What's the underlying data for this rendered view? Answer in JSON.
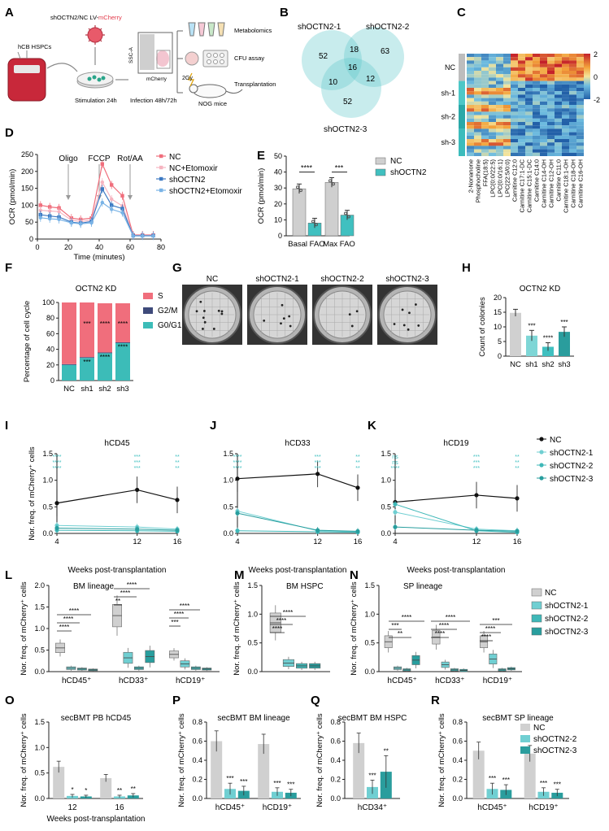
{
  "colors": {
    "nc_black": "#111111",
    "gray_bar": "#d0d0d0",
    "teal": "#40c0c0",
    "teal_light": "#7ed6d6",
    "teal_dark": "#2a9d9d",
    "sh1": "#70cfd2",
    "sh2": "#3fb8b8",
    "sh3": "#289e9e",
    "pink": "#f06e7c",
    "cycle_g2m": "#3e4a7a",
    "cycle_g0g1": "#3cbcb8",
    "mcherry": "#e23a4a"
  },
  "panelA": {
    "letter": "A",
    "vector": "shOCTN2/NC LV-",
    "vector_red": "mCherry",
    "cells": "hCB HSPCs",
    "stimulation": "Stimulation 24h",
    "infection": "Infection 48h/72h",
    "ssc": "SSC-A",
    "mcherry_axis": "mCherry",
    "metabolomics": "Metabolomics",
    "cfu": "CFU assay",
    "transplant": "Transplantation",
    "gy": "2Gy",
    "mice": "NOG mice"
  },
  "panelB": {
    "letter": "B",
    "set1": "shOCTN2-1",
    "set2": "shOCTN2-2",
    "set3": "shOCTN2-3",
    "only1": "52",
    "only2": "63",
    "only3": "52",
    "ab": "18",
    "ac": "10",
    "bc": "12",
    "abc": "16"
  },
  "panelC": {
    "letter": "C",
    "rows": [
      "NC",
      "sh-1",
      "sh-2",
      "sh-3"
    ],
    "metabolites": [
      "2-Nonanone",
      "Phosphocholine",
      "FFA(18:5)",
      "LPC(0:0/22:5)",
      "LPC(0:0/16:1)",
      "LPC(22:5/0:0)",
      "Carnitine C12:0",
      "Carnitine C17:1-DC",
      "Carnitine C15:1-DC",
      "Carnitine C14:0",
      "Carnitine C14-OH",
      "Carnitine C12-OH",
      "Carnitine C11:0",
      "Carnitine C18:1-OH",
      "Carnitine C18-OH",
      "Carnitine C16-OH"
    ],
    "scale_ticks": [
      "2",
      "0",
      "-2"
    ]
  },
  "panelD": {
    "letter": "D",
    "chart_data": {
      "type": "line",
      "xlabel": "Time (minutes)",
      "ylabel": "OCR (pmol/min)",
      "xlim": [
        0,
        80
      ],
      "ylim": [
        0,
        250
      ],
      "x_ticks": [
        0,
        20,
        40,
        60,
        80
      ],
      "y_ticks": [
        0,
        50,
        100,
        150,
        200,
        250
      ],
      "annotations": [
        "Oligo",
        "FCCP",
        "Rot/AA"
      ],
      "x": [
        2,
        8,
        14,
        22,
        28,
        35,
        42,
        48,
        55,
        62,
        68,
        75
      ],
      "series": [
        {
          "name": "NC",
          "values": [
            100,
            95,
            92,
            62,
            58,
            62,
            222,
            160,
            128,
            12,
            12,
            12
          ]
        },
        {
          "name": "NC+Etomoxir",
          "values": [
            85,
            83,
            81,
            56,
            52,
            56,
            168,
            118,
            98,
            10,
            10,
            10
          ]
        },
        {
          "name": "shOCTN2",
          "values": [
            72,
            68,
            65,
            50,
            47,
            52,
            148,
            100,
            90,
            10,
            10,
            10
          ]
        },
        {
          "name": "shOCTN2+Etomoxir",
          "values": [
            63,
            60,
            58,
            48,
            45,
            48,
            108,
            88,
            78,
            9,
            9,
            9
          ]
        }
      ]
    }
  },
  "panelE": {
    "letter": "E",
    "chart_data": {
      "type": "bar",
      "categories": [
        "Basal FAO",
        "Max FAO"
      ],
      "ylabel": "OCR (pmol/min)",
      "ylim": [
        0,
        50
      ],
      "y_ticks": [
        0,
        10,
        20,
        30,
        40,
        50
      ],
      "series": [
        {
          "name": "NC",
          "values": [
            29.5,
            33.5
          ]
        },
        {
          "name": "shOCTN2",
          "values": [
            8.0,
            13.0
          ]
        }
      ],
      "significance": [
        "****",
        "***"
      ]
    }
  },
  "panelF": {
    "letter": "F",
    "chart_data": {
      "type": "bar",
      "stacked": true,
      "title": "OCTN2 KD",
      "categories": [
        "NC",
        "sh1",
        "sh2",
        "sh3"
      ],
      "ylabel": "Percentage of cell cycle",
      "ylim": [
        0,
        100
      ],
      "y_ticks": [
        0,
        20,
        40,
        60,
        80,
        100
      ],
      "series": [
        {
          "name": "G0/G1",
          "values": [
            20,
            29,
            35,
            48
          ]
        },
        {
          "name": "G2/M",
          "values": [
            1,
            1,
            1,
            1
          ]
        },
        {
          "name": "S",
          "values": [
            79,
            70,
            63,
            50
          ]
        }
      ],
      "legend_order": [
        "S",
        "G2/M",
        "G0/G1"
      ],
      "sig_s": [
        "",
        "***",
        "****",
        "****"
      ],
      "sig_g": [
        "",
        "***",
        "****",
        "****"
      ]
    }
  },
  "panelG": {
    "letter": "G",
    "wells": [
      "NC",
      "shOCTN2-1",
      "shOCTN2-2",
      "shOCTN2-3"
    ]
  },
  "panelH": {
    "letter": "H",
    "chart_data": {
      "type": "bar",
      "title": "OCTN2 KD",
      "categories": [
        "NC",
        "sh1",
        "sh2",
        "sh3"
      ],
      "values": [
        14.8,
        7.0,
        3.2,
        8.3
      ],
      "errors": [
        1.2,
        1.8,
        1.4,
        1.7
      ],
      "ylabel": "Count of colonies",
      "ylim": [
        0,
        20
      ],
      "y_ticks": [
        0,
        5,
        10,
        15,
        20
      ],
      "significance": [
        "",
        "***",
        "****",
        "***"
      ]
    }
  },
  "panelI": {
    "letter": "I",
    "chart_data": {
      "type": "line",
      "title": "hCD45",
      "ylabel": "Nor. freq. of mCherry⁺ cells",
      "x": [
        4,
        12,
        16
      ],
      "ylim": [
        0,
        1.5
      ],
      "y_ticks": [
        "0.0",
        "0.5",
        "1.0",
        "1.5"
      ],
      "series": [
        {
          "name": "NC",
          "values": [
            0.57,
            0.82,
            0.63
          ]
        },
        {
          "name": "shOCTN2-1",
          "values": [
            0.15,
            0.12,
            0.08
          ]
        },
        {
          "name": "shOCTN2-2",
          "values": [
            0.06,
            0.05,
            0.04
          ]
        },
        {
          "name": "shOCTN2-3",
          "values": [
            0.1,
            0.08,
            0.06
          ]
        }
      ],
      "sig": [
        "****\n****\n****",
        "***\n***\n***",
        "**\n**\n**"
      ]
    }
  },
  "panelJ": {
    "letter": "J",
    "chart_data": {
      "type": "line",
      "title": "hCD33",
      "x": [
        4,
        12,
        16
      ],
      "ylim": [
        0,
        1.5
      ],
      "y_ticks": [
        "0.0",
        "0.5",
        "1.0",
        "1.5"
      ],
      "series": [
        {
          "name": "NC",
          "values": [
            1.03,
            1.12,
            0.86
          ]
        },
        {
          "name": "shOCTN2-1",
          "values": [
            0.42,
            0.05,
            0.03
          ]
        },
        {
          "name": "shOCTN2-2",
          "values": [
            0.05,
            0.03,
            0.02
          ]
        },
        {
          "name": "shOCTN2-3",
          "values": [
            0.38,
            0.06,
            0.04
          ]
        }
      ],
      "sig": [
        "****\n****\n****",
        "***\n***\n***",
        "**\n**\n**"
      ]
    }
  },
  "panelK": {
    "letter": "K",
    "chart_data": {
      "type": "line",
      "title": "hCD19",
      "x": [
        4,
        12,
        16
      ],
      "ylim": [
        0,
        1.5
      ],
      "y_ticks": [
        "0.0",
        "0.5",
        "1.0",
        "1.5"
      ],
      "series": [
        {
          "name": "NC",
          "values": [
            0.59,
            0.72,
            0.66
          ]
        },
        {
          "name": "shOCTN2-1",
          "values": [
            0.4,
            0.08,
            0.05
          ]
        },
        {
          "name": "shOCTN2-2",
          "values": [
            0.55,
            0.05,
            0.02
          ]
        },
        {
          "name": "shOCTN2-3",
          "values": [
            0.12,
            0.06,
            0.04
          ]
        }
      ],
      "sig": [
        "ns\nns\n****",
        "***\n***\n***",
        "**\n**\n**"
      ]
    },
    "legend": [
      "NC",
      "shOCTN2-1",
      "shOCTN2-2",
      "shOCTN2-3"
    ]
  },
  "weeks_label": "Weeks post-transplantation",
  "panelL": {
    "letter": "L",
    "chart_data": {
      "type": "box",
      "title": "BM lineage",
      "ylabel": "Nor. freq. of mCherry⁺ cells",
      "categories": [
        "hCD45⁺",
        "hCD33⁺",
        "hCD19⁺"
      ],
      "ylim": [
        0,
        2.0
      ],
      "y_ticks": [
        "0.0",
        "0.5",
        "1.0",
        "1.5",
        "2.0"
      ],
      "medians": [
        [
          0.55,
          0.08,
          0.06,
          0.04
        ],
        [
          1.3,
          0.32,
          0.08,
          0.35
        ],
        [
          0.4,
          0.18,
          0.08,
          0.06
        ]
      ],
      "sig": [
        "****",
        "****",
        "****",
        "**",
        "****",
        "****",
        "***",
        "****",
        "****"
      ]
    }
  },
  "panelM": {
    "letter": "M",
    "chart_data": {
      "type": "box",
      "title": "BM HSPC",
      "ylabel": "Nor. freq. of mCherry⁺ cells",
      "ylim": [
        0,
        1.5
      ],
      "y_ticks": [
        "0.0",
        "0.5",
        "1.0",
        "1.5"
      ],
      "medians": [
        0.85,
        0.15,
        0.1,
        0.1
      ],
      "sig": [
        "****",
        "****",
        "****"
      ]
    }
  },
  "panelN": {
    "letter": "N",
    "chart_data": {
      "type": "box",
      "title": "SP lineage",
      "ylabel": "Nor. freq. of mCherry⁺ cells",
      "categories": [
        "hCD45⁺",
        "hCD33⁺",
        "hCD19⁺"
      ],
      "ylim": [
        0,
        1.5
      ],
      "y_ticks": [
        "0.0",
        "0.5",
        "1.0",
        "1.5"
      ],
      "medians": [
        [
          0.52,
          0.06,
          0.03,
          0.2
        ],
        [
          0.6,
          0.12,
          0.03,
          0.02
        ],
        [
          0.52,
          0.22,
          0.03,
          0.05
        ]
      ],
      "sig": [
        "**",
        "***",
        "****",
        "****",
        "****",
        "****",
        "****",
        "****",
        "***"
      ]
    },
    "legend": [
      "NC",
      "shOCTN2-1",
      "shOCTN2-2",
      "shOCTN2-3"
    ]
  },
  "panelO": {
    "letter": "O",
    "chart_data": {
      "type": "bar",
      "title": "secBMT PB hCD45",
      "ylabel": "Nor. freq. of mCherry⁺ cells",
      "categories": [
        "12",
        "16"
      ],
      "xlabel": "Weeks post-transplantation",
      "ylim": [
        0,
        1.5
      ],
      "y_ticks": [
        "0.0",
        "0.5",
        "1.0",
        "1.5"
      ],
      "series": [
        {
          "name": "NC",
          "values": [
            0.62,
            0.4
          ]
        },
        {
          "name": "shOCTN2-2",
          "values": [
            0.05,
            0.04
          ]
        },
        {
          "name": "shOCTN2-3",
          "values": [
            0.04,
            0.06
          ]
        }
      ],
      "sig": [
        "*",
        "*",
        "**",
        "**"
      ]
    }
  },
  "panelP": {
    "letter": "P",
    "chart_data": {
      "type": "bar",
      "title": "secBMT BM lineage",
      "ylabel": "Nor. freq. of mCherry⁺ cells",
      "categories": [
        "hCD45⁺",
        "hCD19⁺"
      ],
      "ylim": [
        0,
        0.8
      ],
      "y_ticks": [
        "0.0",
        "0.2",
        "0.4",
        "0.6",
        "0.8"
      ],
      "series": [
        {
          "name": "NC",
          "values": [
            0.6,
            0.57
          ]
        },
        {
          "name": "shOCTN2-2",
          "values": [
            0.1,
            0.07
          ]
        },
        {
          "name": "shOCTN2-3",
          "values": [
            0.08,
            0.06
          ]
        }
      ],
      "sig": [
        "***",
        "***",
        "***",
        "***"
      ]
    }
  },
  "panelQ": {
    "letter": "Q",
    "chart_data": {
      "type": "bar",
      "title": "secBMT BM HSPC",
      "ylabel": "Nor. freq. of mCherry⁺ cells",
      "categories": [
        "hCD34⁺"
      ],
      "ylim": [
        0,
        0.8
      ],
      "y_ticks": [
        "0.0",
        "0.2",
        "0.4",
        "0.6",
        "0.8"
      ],
      "series": [
        {
          "name": "NC",
          "values": [
            0.58
          ]
        },
        {
          "name": "shOCTN2-2",
          "values": [
            0.12
          ]
        },
        {
          "name": "shOCTN2-3",
          "values": [
            0.28
          ]
        }
      ],
      "sig": [
        "***",
        "**"
      ]
    }
  },
  "panelR": {
    "letter": "R",
    "chart_data": {
      "type": "bar",
      "title": "secBMT SP lineage",
      "ylabel": "Nor. freq. of mCherry⁺ cells",
      "categories": [
        "hCD45⁺",
        "hCD19⁺"
      ],
      "ylim": [
        0,
        0.8
      ],
      "y_ticks": [
        "0.0",
        "0.2",
        "0.4",
        "0.6",
        "0.8"
      ],
      "series": [
        {
          "name": "NC",
          "values": [
            0.5,
            0.47
          ]
        },
        {
          "name": "shOCTN2-2",
          "values": [
            0.1,
            0.07
          ]
        },
        {
          "name": "shOCTN2-3",
          "values": [
            0.09,
            0.06
          ]
        }
      ],
      "sig": [
        "***",
        "***",
        "***",
        "***"
      ]
    },
    "legend": [
      "NC",
      "shOCTN2-2",
      "shOCTN2-3"
    ]
  }
}
